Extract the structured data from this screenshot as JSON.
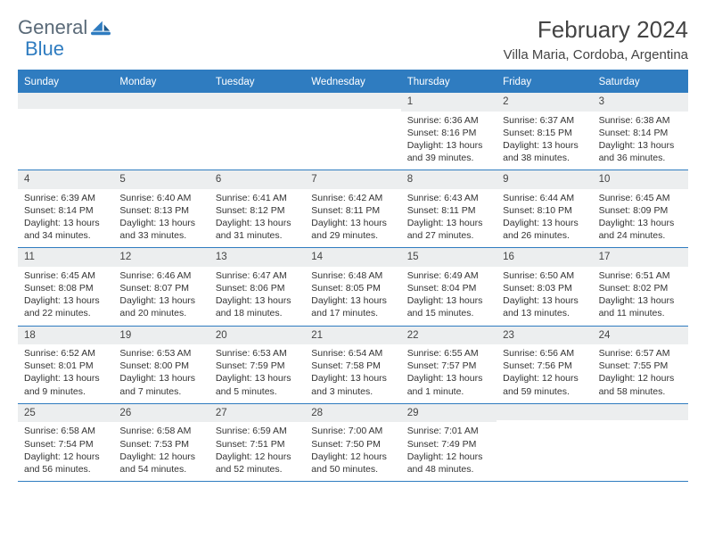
{
  "logo": {
    "text1": "General",
    "text2": "Blue"
  },
  "title": "February 2024",
  "location": "Villa Maria, Cordoba, Argentina",
  "colors": {
    "accent": "#2f7cc0",
    "row_bg": "#eceeef",
    "text": "#333333"
  },
  "dow": [
    "Sunday",
    "Monday",
    "Tuesday",
    "Wednesday",
    "Thursday",
    "Friday",
    "Saturday"
  ],
  "weeks": [
    [
      {
        "blank": true
      },
      {
        "blank": true
      },
      {
        "blank": true
      },
      {
        "blank": true
      },
      {
        "n": "1",
        "sr": "Sunrise: 6:36 AM",
        "ss": "Sunset: 8:16 PM",
        "d1": "Daylight: 13 hours",
        "d2": "and 39 minutes."
      },
      {
        "n": "2",
        "sr": "Sunrise: 6:37 AM",
        "ss": "Sunset: 8:15 PM",
        "d1": "Daylight: 13 hours",
        "d2": "and 38 minutes."
      },
      {
        "n": "3",
        "sr": "Sunrise: 6:38 AM",
        "ss": "Sunset: 8:14 PM",
        "d1": "Daylight: 13 hours",
        "d2": "and 36 minutes."
      }
    ],
    [
      {
        "n": "4",
        "sr": "Sunrise: 6:39 AM",
        "ss": "Sunset: 8:14 PM",
        "d1": "Daylight: 13 hours",
        "d2": "and 34 minutes."
      },
      {
        "n": "5",
        "sr": "Sunrise: 6:40 AM",
        "ss": "Sunset: 8:13 PM",
        "d1": "Daylight: 13 hours",
        "d2": "and 33 minutes."
      },
      {
        "n": "6",
        "sr": "Sunrise: 6:41 AM",
        "ss": "Sunset: 8:12 PM",
        "d1": "Daylight: 13 hours",
        "d2": "and 31 minutes."
      },
      {
        "n": "7",
        "sr": "Sunrise: 6:42 AM",
        "ss": "Sunset: 8:11 PM",
        "d1": "Daylight: 13 hours",
        "d2": "and 29 minutes."
      },
      {
        "n": "8",
        "sr": "Sunrise: 6:43 AM",
        "ss": "Sunset: 8:11 PM",
        "d1": "Daylight: 13 hours",
        "d2": "and 27 minutes."
      },
      {
        "n": "9",
        "sr": "Sunrise: 6:44 AM",
        "ss": "Sunset: 8:10 PM",
        "d1": "Daylight: 13 hours",
        "d2": "and 26 minutes."
      },
      {
        "n": "10",
        "sr": "Sunrise: 6:45 AM",
        "ss": "Sunset: 8:09 PM",
        "d1": "Daylight: 13 hours",
        "d2": "and 24 minutes."
      }
    ],
    [
      {
        "n": "11",
        "sr": "Sunrise: 6:45 AM",
        "ss": "Sunset: 8:08 PM",
        "d1": "Daylight: 13 hours",
        "d2": "and 22 minutes."
      },
      {
        "n": "12",
        "sr": "Sunrise: 6:46 AM",
        "ss": "Sunset: 8:07 PM",
        "d1": "Daylight: 13 hours",
        "d2": "and 20 minutes."
      },
      {
        "n": "13",
        "sr": "Sunrise: 6:47 AM",
        "ss": "Sunset: 8:06 PM",
        "d1": "Daylight: 13 hours",
        "d2": "and 18 minutes."
      },
      {
        "n": "14",
        "sr": "Sunrise: 6:48 AM",
        "ss": "Sunset: 8:05 PM",
        "d1": "Daylight: 13 hours",
        "d2": "and 17 minutes."
      },
      {
        "n": "15",
        "sr": "Sunrise: 6:49 AM",
        "ss": "Sunset: 8:04 PM",
        "d1": "Daylight: 13 hours",
        "d2": "and 15 minutes."
      },
      {
        "n": "16",
        "sr": "Sunrise: 6:50 AM",
        "ss": "Sunset: 8:03 PM",
        "d1": "Daylight: 13 hours",
        "d2": "and 13 minutes."
      },
      {
        "n": "17",
        "sr": "Sunrise: 6:51 AM",
        "ss": "Sunset: 8:02 PM",
        "d1": "Daylight: 13 hours",
        "d2": "and 11 minutes."
      }
    ],
    [
      {
        "n": "18",
        "sr": "Sunrise: 6:52 AM",
        "ss": "Sunset: 8:01 PM",
        "d1": "Daylight: 13 hours",
        "d2": "and 9 minutes."
      },
      {
        "n": "19",
        "sr": "Sunrise: 6:53 AM",
        "ss": "Sunset: 8:00 PM",
        "d1": "Daylight: 13 hours",
        "d2": "and 7 minutes."
      },
      {
        "n": "20",
        "sr": "Sunrise: 6:53 AM",
        "ss": "Sunset: 7:59 PM",
        "d1": "Daylight: 13 hours",
        "d2": "and 5 minutes."
      },
      {
        "n": "21",
        "sr": "Sunrise: 6:54 AM",
        "ss": "Sunset: 7:58 PM",
        "d1": "Daylight: 13 hours",
        "d2": "and 3 minutes."
      },
      {
        "n": "22",
        "sr": "Sunrise: 6:55 AM",
        "ss": "Sunset: 7:57 PM",
        "d1": "Daylight: 13 hours",
        "d2": "and 1 minute."
      },
      {
        "n": "23",
        "sr": "Sunrise: 6:56 AM",
        "ss": "Sunset: 7:56 PM",
        "d1": "Daylight: 12 hours",
        "d2": "and 59 minutes."
      },
      {
        "n": "24",
        "sr": "Sunrise: 6:57 AM",
        "ss": "Sunset: 7:55 PM",
        "d1": "Daylight: 12 hours",
        "d2": "and 58 minutes."
      }
    ],
    [
      {
        "n": "25",
        "sr": "Sunrise: 6:58 AM",
        "ss": "Sunset: 7:54 PM",
        "d1": "Daylight: 12 hours",
        "d2": "and 56 minutes."
      },
      {
        "n": "26",
        "sr": "Sunrise: 6:58 AM",
        "ss": "Sunset: 7:53 PM",
        "d1": "Daylight: 12 hours",
        "d2": "and 54 minutes."
      },
      {
        "n": "27",
        "sr": "Sunrise: 6:59 AM",
        "ss": "Sunset: 7:51 PM",
        "d1": "Daylight: 12 hours",
        "d2": "and 52 minutes."
      },
      {
        "n": "28",
        "sr": "Sunrise: 7:00 AM",
        "ss": "Sunset: 7:50 PM",
        "d1": "Daylight: 12 hours",
        "d2": "and 50 minutes."
      },
      {
        "n": "29",
        "sr": "Sunrise: 7:01 AM",
        "ss": "Sunset: 7:49 PM",
        "d1": "Daylight: 12 hours",
        "d2": "and 48 minutes."
      },
      {
        "blank": true
      },
      {
        "blank": true
      }
    ]
  ]
}
